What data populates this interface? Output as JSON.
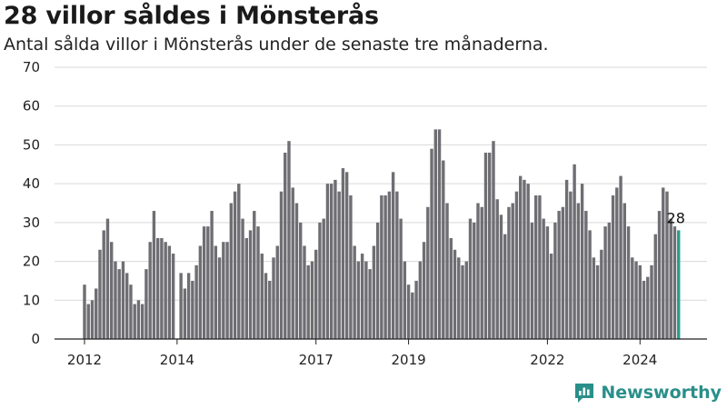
{
  "header": {
    "title": "28 villor såldes i Mönsterås",
    "subtitle": "Antal sålda villor i Mönsterås under de senaste tre månaderna."
  },
  "brand": {
    "name": "Newsworthy",
    "icon": "newsworthy-logo-icon",
    "color": "#2a8f8a"
  },
  "chart_data": {
    "type": "bar",
    "title": "28 villor såldes i Mönsterås",
    "subtitle": "Antal sålda villor i Mönsterås under de senaste tre månaderna.",
    "xlabel": "",
    "ylabel": "",
    "ylim": [
      0,
      70
    ],
    "yticks": [
      0,
      10,
      20,
      30,
      40,
      50,
      60,
      70
    ],
    "grid": true,
    "start": "2012-01",
    "xticks": [
      {
        "label": "2012",
        "index": 0
      },
      {
        "label": "2014",
        "index": 24
      },
      {
        "label": "2017",
        "index": 60
      },
      {
        "label": "2019",
        "index": 84
      },
      {
        "label": "2022",
        "index": 120
      },
      {
        "label": "2024",
        "index": 144
      }
    ],
    "values": [
      14,
      9,
      10,
      13,
      23,
      28,
      31,
      25,
      20,
      18,
      20,
      17,
      14,
      9,
      10,
      9,
      18,
      25,
      33,
      26,
      26,
      25,
      24,
      22,
      null,
      17,
      13,
      17,
      15,
      19,
      24,
      29,
      29,
      33,
      24,
      21,
      25,
      25,
      35,
      38,
      40,
      31,
      26,
      28,
      33,
      29,
      22,
      17,
      15,
      21,
      24,
      38,
      48,
      51,
      39,
      35,
      30,
      24,
      19,
      20,
      23,
      30,
      31,
      40,
      40,
      41,
      38,
      44,
      43,
      37,
      24,
      20,
      22,
      20,
      18,
      24,
      30,
      37,
      37,
      38,
      43,
      38,
      31,
      20,
      14,
      12,
      15,
      20,
      25,
      34,
      49,
      54,
      54,
      46,
      35,
      26,
      23,
      21,
      19,
      20,
      31,
      30,
      35,
      34,
      48,
      48,
      51,
      36,
      32,
      27,
      34,
      35,
      38,
      42,
      41,
      40,
      30,
      37,
      37,
      31,
      29,
      22,
      30,
      33,
      34,
      41,
      38,
      45,
      35,
      40,
      33,
      28,
      21,
      19,
      23,
      29,
      30,
      37,
      39,
      42,
      35,
      29,
      21,
      20,
      19,
      15,
      16,
      19,
      27,
      33,
      39,
      38,
      31,
      29,
      28
    ],
    "highlight_index": 154,
    "bar_color": "#6e6e73",
    "highlight_color": "#2a9d8f",
    "data_labels": [
      {
        "index": 154,
        "text": "28"
      }
    ]
  }
}
